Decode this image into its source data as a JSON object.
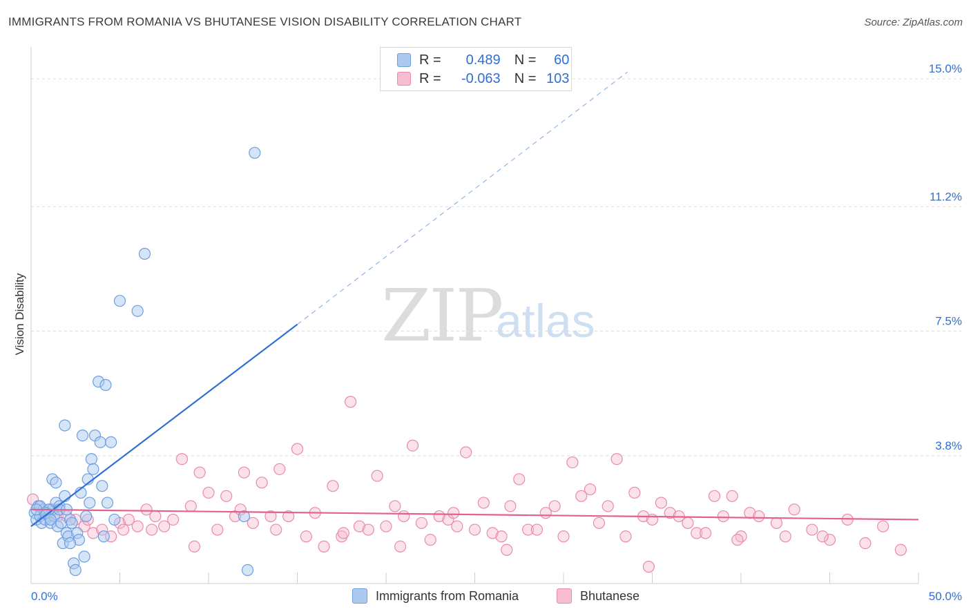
{
  "title": "IMMIGRANTS FROM ROMANIA VS BHUTANESE VISION DISABILITY CORRELATION CHART",
  "source": "Source: ZipAtlas.com",
  "watermark": {
    "zip": "ZIP",
    "atlas": "atlas"
  },
  "legend": {
    "r_label": "R =",
    "n_label": "N =",
    "series": [
      {
        "name": "Immigrants from Romania",
        "r": "0.489",
        "n": "60"
      },
      {
        "name": "Bhutanese",
        "r": "-0.063",
        "n": "103"
      }
    ]
  },
  "colors": {
    "blue_fill": "#aec9f0",
    "blue_stroke": "#6c9de0",
    "blue_line": "#2f6fd4",
    "pink_fill": "#f6bcd0",
    "pink_stroke": "#e88aaa",
    "pink_line": "#e0628d",
    "axis_text": "#2f6fd4",
    "grid": "#dddddd"
  },
  "chart_data": {
    "type": "scatter",
    "title": "IMMIGRANTS FROM ROMANIA VS BHUTANESE VISION DISABILITY CORRELATION CHART",
    "xlabel": "",
    "ylabel": "Vision Disability",
    "xlim": [
      0,
      50
    ],
    "ylim": [
      0,
      15.7
    ],
    "x_tick_labels": [
      "0.0%",
      "50.0%"
    ],
    "y_ticks": [
      3.8,
      7.5,
      11.2,
      15.0
    ],
    "y_tick_labels": [
      "3.8%",
      "7.5%",
      "11.2%",
      "15.0%"
    ],
    "series": [
      {
        "name": "Immigrants from Romania",
        "r": 0.489,
        "n": 60,
        "trend": {
          "x0": 0.0,
          "y0": 1.7,
          "x1": 15.0,
          "y1": 7.7,
          "dashed_to_x": 33.6,
          "dashed_to_y": 15.2
        },
        "points": [
          [
            0.2,
            2.1
          ],
          [
            0.3,
            1.9
          ],
          [
            0.4,
            2.3
          ],
          [
            0.5,
            2.0
          ],
          [
            0.6,
            1.8
          ],
          [
            0.7,
            2.2
          ],
          [
            0.8,
            1.9
          ],
          [
            0.9,
            2.1
          ],
          [
            1.0,
            2.0
          ],
          [
            1.1,
            1.8
          ],
          [
            1.2,
            2.2
          ],
          [
            1.3,
            2.0
          ],
          [
            1.4,
            2.4
          ],
          [
            1.5,
            1.7
          ],
          [
            1.6,
            2.3
          ],
          [
            1.7,
            1.8
          ],
          [
            1.8,
            1.2
          ],
          [
            1.9,
            2.6
          ],
          [
            2.0,
            1.5
          ],
          [
            2.1,
            1.4
          ],
          [
            2.2,
            1.9
          ],
          [
            2.3,
            1.8
          ],
          [
            2.4,
            0.6
          ],
          [
            2.5,
            0.4
          ],
          [
            2.6,
            1.5
          ],
          [
            2.7,
            1.3
          ],
          [
            2.8,
            2.7
          ],
          [
            3.0,
            0.8
          ],
          [
            3.1,
            2.0
          ],
          [
            3.3,
            2.4
          ],
          [
            3.4,
            3.7
          ],
          [
            3.5,
            3.4
          ],
          [
            3.6,
            4.4
          ],
          [
            3.8,
            6.0
          ],
          [
            3.9,
            4.2
          ],
          [
            4.0,
            2.9
          ],
          [
            4.1,
            1.4
          ],
          [
            4.2,
            5.9
          ],
          [
            4.3,
            2.4
          ],
          [
            4.5,
            4.2
          ],
          [
            4.7,
            1.9
          ],
          [
            5.0,
            8.4
          ],
          [
            6.0,
            8.1
          ],
          [
            6.4,
            9.8
          ],
          [
            12.0,
            2.0
          ],
          [
            12.6,
            12.8
          ],
          [
            0.5,
            2.3
          ],
          [
            1.0,
            2.2
          ],
          [
            1.2,
            3.1
          ],
          [
            1.4,
            3.0
          ],
          [
            1.9,
            4.7
          ],
          [
            2.2,
            1.2
          ],
          [
            0.8,
            2.1
          ],
          [
            2.9,
            4.4
          ],
          [
            1.6,
            2.2
          ],
          [
            0.3,
            2.2
          ],
          [
            1.1,
            1.9
          ],
          [
            2.0,
            2.2
          ],
          [
            12.2,
            0.4
          ],
          [
            3.2,
            3.1
          ]
        ]
      },
      {
        "name": "Bhutanese",
        "r": -0.063,
        "n": 103,
        "trend": {
          "x0": 0.0,
          "y0": 2.2,
          "x1": 50.0,
          "y1": 1.9
        },
        "points": [
          [
            0.1,
            2.5
          ],
          [
            0.5,
            2.3
          ],
          [
            1.0,
            2.2
          ],
          [
            1.5,
            2.0
          ],
          [
            2.0,
            2.0
          ],
          [
            2.5,
            1.9
          ],
          [
            3.0,
            1.7
          ],
          [
            3.5,
            1.5
          ],
          [
            4.0,
            1.6
          ],
          [
            4.5,
            1.4
          ],
          [
            5.0,
            1.8
          ],
          [
            5.5,
            1.9
          ],
          [
            6.0,
            1.7
          ],
          [
            6.5,
            2.2
          ],
          [
            7.0,
            2.0
          ],
          [
            7.5,
            1.7
          ],
          [
            8.0,
            1.9
          ],
          [
            8.5,
            3.7
          ],
          [
            9.0,
            2.3
          ],
          [
            9.5,
            3.3
          ],
          [
            10.0,
            2.7
          ],
          [
            10.5,
            1.6
          ],
          [
            11.0,
            2.6
          ],
          [
            11.5,
            2.0
          ],
          [
            12.0,
            3.3
          ],
          [
            12.5,
            1.8
          ],
          [
            13.0,
            3.0
          ],
          [
            13.5,
            2.0
          ],
          [
            14.0,
            3.4
          ],
          [
            14.5,
            2.0
          ],
          [
            15.0,
            4.0
          ],
          [
            15.5,
            1.4
          ],
          [
            16.0,
            2.1
          ],
          [
            16.5,
            1.1
          ],
          [
            17.0,
            2.9
          ],
          [
            17.5,
            1.4
          ],
          [
            18.0,
            5.4
          ],
          [
            18.5,
            1.7
          ],
          [
            19.0,
            1.6
          ],
          [
            19.5,
            3.2
          ],
          [
            20.0,
            1.7
          ],
          [
            20.5,
            2.3
          ],
          [
            21.0,
            2.0
          ],
          [
            21.5,
            4.1
          ],
          [
            22.0,
            1.8
          ],
          [
            22.5,
            1.3
          ],
          [
            23.0,
            2.0
          ],
          [
            23.5,
            1.9
          ],
          [
            24.0,
            1.7
          ],
          [
            24.5,
            3.9
          ],
          [
            25.0,
            1.6
          ],
          [
            25.5,
            2.4
          ],
          [
            26.0,
            1.5
          ],
          [
            26.5,
            1.4
          ],
          [
            27.0,
            2.3
          ],
          [
            27.5,
            3.1
          ],
          [
            28.0,
            1.6
          ],
          [
            28.5,
            1.6
          ],
          [
            29.0,
            2.1
          ],
          [
            29.5,
            2.3
          ],
          [
            30.0,
            1.4
          ],
          [
            30.5,
            3.6
          ],
          [
            31.0,
            2.6
          ],
          [
            31.5,
            2.8
          ],
          [
            32.0,
            1.8
          ],
          [
            32.5,
            2.3
          ],
          [
            33.0,
            3.7
          ],
          [
            33.5,
            1.4
          ],
          [
            34.0,
            2.7
          ],
          [
            34.5,
            2.0
          ],
          [
            35.0,
            1.9
          ],
          [
            35.5,
            2.4
          ],
          [
            36.0,
            2.1
          ],
          [
            36.5,
            2.0
          ],
          [
            37.0,
            1.8
          ],
          [
            37.5,
            1.5
          ],
          [
            38.0,
            1.5
          ],
          [
            38.5,
            2.6
          ],
          [
            39.0,
            2.0
          ],
          [
            39.5,
            2.6
          ],
          [
            40.0,
            1.4
          ],
          [
            40.5,
            2.1
          ],
          [
            41.0,
            2.0
          ],
          [
            42.0,
            1.8
          ],
          [
            42.5,
            1.4
          ],
          [
            43.0,
            2.2
          ],
          [
            44.0,
            1.6
          ],
          [
            45.0,
            1.3
          ],
          [
            46.0,
            1.9
          ],
          [
            47.0,
            1.2
          ],
          [
            48.0,
            1.7
          ],
          [
            49.0,
            1.0
          ],
          [
            5.2,
            1.6
          ],
          [
            9.2,
            1.1
          ],
          [
            13.8,
            1.6
          ],
          [
            20.8,
            1.1
          ],
          [
            26.8,
            1.0
          ],
          [
            34.8,
            0.5
          ],
          [
            39.8,
            1.3
          ],
          [
            44.6,
            1.4
          ],
          [
            3.2,
            1.9
          ],
          [
            6.8,
            1.6
          ],
          [
            11.8,
            2.2
          ],
          [
            17.6,
            1.5
          ],
          [
            23.8,
            2.1
          ]
        ]
      }
    ],
    "legend": "top-center"
  }
}
